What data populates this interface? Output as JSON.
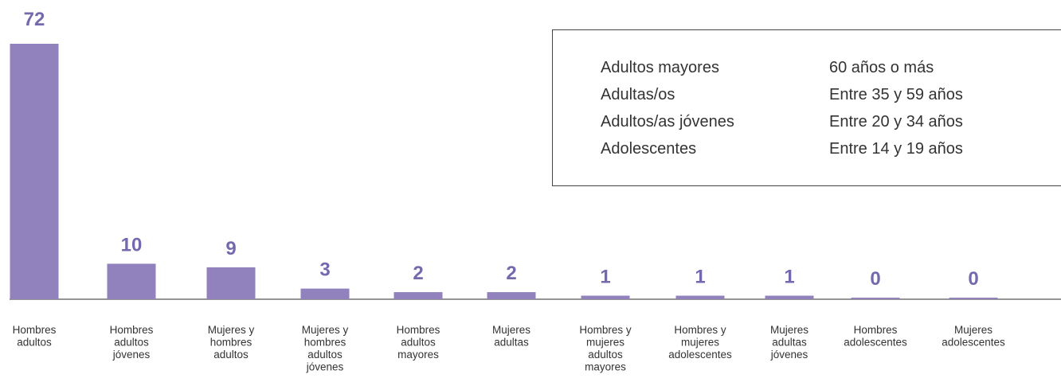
{
  "chart_data": {
    "type": "bar",
    "categories": [
      "Hombres adultos",
      "Hombres adultos jóvenes",
      "Mujeres y hombres adultos",
      "Mujeres y hombres adultos jóvenes",
      "Hombres adultos mayores",
      "Mujeres adultas",
      "Hombres y mujeres adultos mayores",
      "Hombres y mujeres adolescentes",
      "Mujeres adultas jóvenes",
      "Hombres adolescentes",
      "Mujeres adolescentes"
    ],
    "values": [
      72,
      10,
      9,
      3,
      2,
      2,
      1,
      1,
      1,
      0,
      0
    ],
    "ylim": [
      0,
      72
    ],
    "grid": false,
    "legend": "top-right",
    "colors": {
      "bar": "#9181bd",
      "label": "#7569ad",
      "axis": "#555555"
    }
  },
  "legend_box": {
    "rows": [
      {
        "name": "Adultos mayores",
        "range": "60 años o más"
      },
      {
        "name": "Adultas/os",
        "range": "Entre 35 y 59 años"
      },
      {
        "name": "Adultos/as jóvenes",
        "range": "Entre 20 y 34 años"
      },
      {
        "name": "Adolescentes",
        "range": "Entre 14 y 19 años"
      }
    ]
  }
}
